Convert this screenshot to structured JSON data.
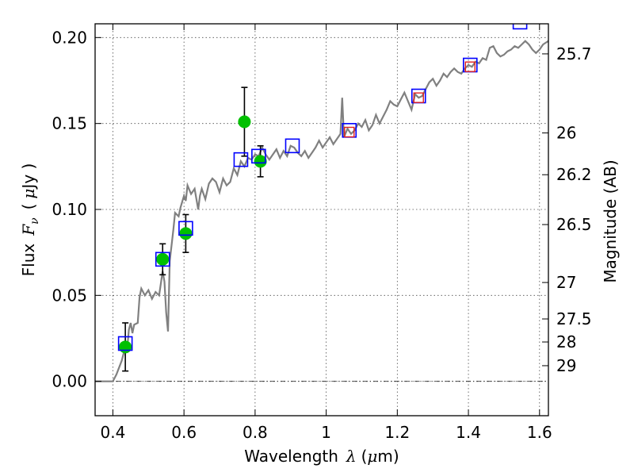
{
  "chart_data": {
    "type": "scatter",
    "title": "",
    "xlabel": {
      "text": "Wavelength",
      "symbol": "λ",
      "unit_open": "(",
      "unit_mu": "μ",
      "unit_rest": "m)"
    },
    "ylabel": {
      "text": "Flux",
      "symbol": "F",
      "subscript": "ν",
      "unit_open": "(",
      "unit_mu": "μ",
      "unit_rest": "Jy )"
    },
    "y2label": "Magnitude (AB)",
    "xlim": [
      0.35,
      1.625
    ],
    "ylim": [
      -0.02,
      0.208
    ],
    "grid": true,
    "x_ticks": [
      {
        "value": 0.4,
        "label": "0.4"
      },
      {
        "value": 0.6,
        "label": "0.6"
      },
      {
        "value": 0.8,
        "label": "0.8"
      },
      {
        "value": 1.0,
        "label": "1"
      },
      {
        "value": 1.2,
        "label": "1.2"
      },
      {
        "value": 1.4,
        "label": "1.4"
      },
      {
        "value": 1.6,
        "label": "1.6"
      }
    ],
    "y_ticks": [
      {
        "value": 0.0,
        "label": "0.00"
      },
      {
        "value": 0.05,
        "label": "0.05"
      },
      {
        "value": 0.1,
        "label": "0.10"
      },
      {
        "value": 0.15,
        "label": "0.15"
      },
      {
        "value": 0.2,
        "label": "0.20"
      }
    ],
    "y2_ticks": [
      {
        "label": "25.7",
        "flux": 0.1905
      },
      {
        "label": "26",
        "flux": 0.1445
      },
      {
        "label": "26.2",
        "flux": 0.1202
      },
      {
        "label": "26.5",
        "flux": 0.0912
      },
      {
        "label": "27",
        "flux": 0.0575
      },
      {
        "label": "27.5",
        "flux": 0.0363
      },
      {
        "label": "28",
        "flux": 0.0229
      },
      {
        "label": "29",
        "flux": 0.0091
      }
    ],
    "series": [
      {
        "kind": "model_sed",
        "color": "#808080",
        "points": [
          [
            0.35,
            0.0
          ],
          [
            0.4,
            0.0
          ],
          [
            0.41,
            0.004
          ],
          [
            0.425,
            0.012
          ],
          [
            0.435,
            0.02
          ],
          [
            0.44,
            0.018
          ],
          [
            0.445,
            0.03
          ],
          [
            0.45,
            0.034
          ],
          [
            0.455,
            0.028
          ],
          [
            0.46,
            0.033
          ],
          [
            0.47,
            0.034
          ],
          [
            0.475,
            0.049
          ],
          [
            0.48,
            0.054
          ],
          [
            0.49,
            0.05
          ],
          [
            0.5,
            0.053
          ],
          [
            0.51,
            0.048
          ],
          [
            0.52,
            0.052
          ],
          [
            0.53,
            0.05
          ],
          [
            0.54,
            0.064
          ],
          [
            0.545,
            0.058
          ],
          [
            0.55,
            0.04
          ],
          [
            0.555,
            0.029
          ],
          [
            0.56,
            0.07
          ],
          [
            0.57,
            0.088
          ],
          [
            0.575,
            0.098
          ],
          [
            0.585,
            0.096
          ],
          [
            0.59,
            0.101
          ],
          [
            0.6,
            0.108
          ],
          [
            0.605,
            0.105
          ],
          [
            0.61,
            0.114
          ],
          [
            0.62,
            0.109
          ],
          [
            0.63,
            0.112
          ],
          [
            0.64,
            0.1
          ],
          [
            0.645,
            0.108
          ],
          [
            0.65,
            0.112
          ],
          [
            0.66,
            0.106
          ],
          [
            0.67,
            0.115
          ],
          [
            0.68,
            0.118
          ],
          [
            0.69,
            0.116
          ],
          [
            0.7,
            0.11
          ],
          [
            0.71,
            0.118
          ],
          [
            0.72,
            0.114
          ],
          [
            0.73,
            0.116
          ],
          [
            0.74,
            0.124
          ],
          [
            0.75,
            0.12
          ],
          [
            0.76,
            0.128
          ],
          [
            0.77,
            0.125
          ],
          [
            0.78,
            0.13
          ],
          [
            0.79,
            0.129
          ],
          [
            0.8,
            0.132
          ],
          [
            0.81,
            0.131
          ],
          [
            0.82,
            0.136
          ],
          [
            0.83,
            0.132
          ],
          [
            0.84,
            0.129
          ],
          [
            0.85,
            0.132
          ],
          [
            0.86,
            0.135
          ],
          [
            0.87,
            0.13
          ],
          [
            0.88,
            0.134
          ],
          [
            0.89,
            0.131
          ],
          [
            0.9,
            0.137
          ],
          [
            0.91,
            0.136
          ],
          [
            0.92,
            0.133
          ],
          [
            0.93,
            0.131
          ],
          [
            0.94,
            0.134
          ],
          [
            0.95,
            0.13
          ],
          [
            0.96,
            0.133
          ],
          [
            0.97,
            0.136
          ],
          [
            0.98,
            0.14
          ],
          [
            0.99,
            0.136
          ],
          [
            1.0,
            0.139
          ],
          [
            1.01,
            0.142
          ],
          [
            1.02,
            0.138
          ],
          [
            1.03,
            0.141
          ],
          [
            1.04,
            0.144
          ],
          [
            1.045,
            0.165
          ],
          [
            1.05,
            0.142
          ],
          [
            1.06,
            0.147
          ],
          [
            1.07,
            0.144
          ],
          [
            1.08,
            0.146
          ],
          [
            1.09,
            0.15
          ],
          [
            1.1,
            0.148
          ],
          [
            1.11,
            0.152
          ],
          [
            1.12,
            0.146
          ],
          [
            1.13,
            0.149
          ],
          [
            1.14,
            0.155
          ],
          [
            1.15,
            0.15
          ],
          [
            1.16,
            0.154
          ],
          [
            1.17,
            0.158
          ],
          [
            1.18,
            0.163
          ],
          [
            1.19,
            0.161
          ],
          [
            1.2,
            0.16
          ],
          [
            1.21,
            0.164
          ],
          [
            1.22,
            0.168
          ],
          [
            1.23,
            0.163
          ],
          [
            1.24,
            0.158
          ],
          [
            1.25,
            0.167
          ],
          [
            1.26,
            0.165
          ],
          [
            1.27,
            0.166
          ],
          [
            1.28,
            0.17
          ],
          [
            1.29,
            0.174
          ],
          [
            1.3,
            0.176
          ],
          [
            1.31,
            0.172
          ],
          [
            1.32,
            0.175
          ],
          [
            1.33,
            0.179
          ],
          [
            1.34,
            0.177
          ],
          [
            1.35,
            0.18
          ],
          [
            1.36,
            0.182
          ],
          [
            1.37,
            0.18
          ],
          [
            1.38,
            0.179
          ],
          [
            1.39,
            0.182
          ],
          [
            1.4,
            0.184
          ],
          [
            1.41,
            0.183
          ],
          [
            1.42,
            0.186
          ],
          [
            1.43,
            0.185
          ],
          [
            1.44,
            0.188
          ],
          [
            1.45,
            0.187
          ],
          [
            1.46,
            0.194
          ],
          [
            1.47,
            0.195
          ],
          [
            1.48,
            0.191
          ],
          [
            1.49,
            0.189
          ],
          [
            1.5,
            0.19
          ],
          [
            1.51,
            0.192
          ],
          [
            1.52,
            0.193
          ],
          [
            1.53,
            0.195
          ],
          [
            1.54,
            0.194
          ],
          [
            1.55,
            0.196
          ],
          [
            1.56,
            0.198
          ],
          [
            1.57,
            0.196
          ],
          [
            1.58,
            0.193
          ],
          [
            1.59,
            0.191
          ],
          [
            1.6,
            0.193
          ],
          [
            1.61,
            0.196
          ],
          [
            1.625,
            0.198
          ]
        ]
      },
      {
        "kind": "observed_flux",
        "color": "#00c000",
        "points": [
          {
            "x": 0.435,
            "y": 0.02,
            "err": 0.014
          },
          {
            "x": 0.54,
            "y": 0.071,
            "err": 0.009
          },
          {
            "x": 0.605,
            "y": 0.086,
            "err": 0.011
          },
          {
            "x": 0.77,
            "y": 0.151,
            "err": 0.02
          },
          {
            "x": 0.815,
            "y": 0.128,
            "err": 0.009
          }
        ]
      },
      {
        "kind": "model_flux",
        "color": "#0000ff",
        "points": [
          {
            "x": 0.435,
            "y": 0.022
          },
          {
            "x": 0.54,
            "y": 0.071
          },
          {
            "x": 0.605,
            "y": 0.089
          },
          {
            "x": 0.76,
            "y": 0.129
          },
          {
            "x": 0.81,
            "y": 0.131
          },
          {
            "x": 0.905,
            "y": 0.137
          },
          {
            "x": 1.065,
            "y": 0.146
          },
          {
            "x": 1.26,
            "y": 0.166
          },
          {
            "x": 1.405,
            "y": 0.184
          },
          {
            "x": 1.545,
            "y": 0.209
          }
        ]
      },
      {
        "kind": "other_flux",
        "color": "#e02020",
        "points": [
          {
            "x": 1.065,
            "y": 0.145
          },
          {
            "x": 1.26,
            "y": 0.165
          },
          {
            "x": 1.405,
            "y": 0.183
          }
        ]
      }
    ]
  }
}
